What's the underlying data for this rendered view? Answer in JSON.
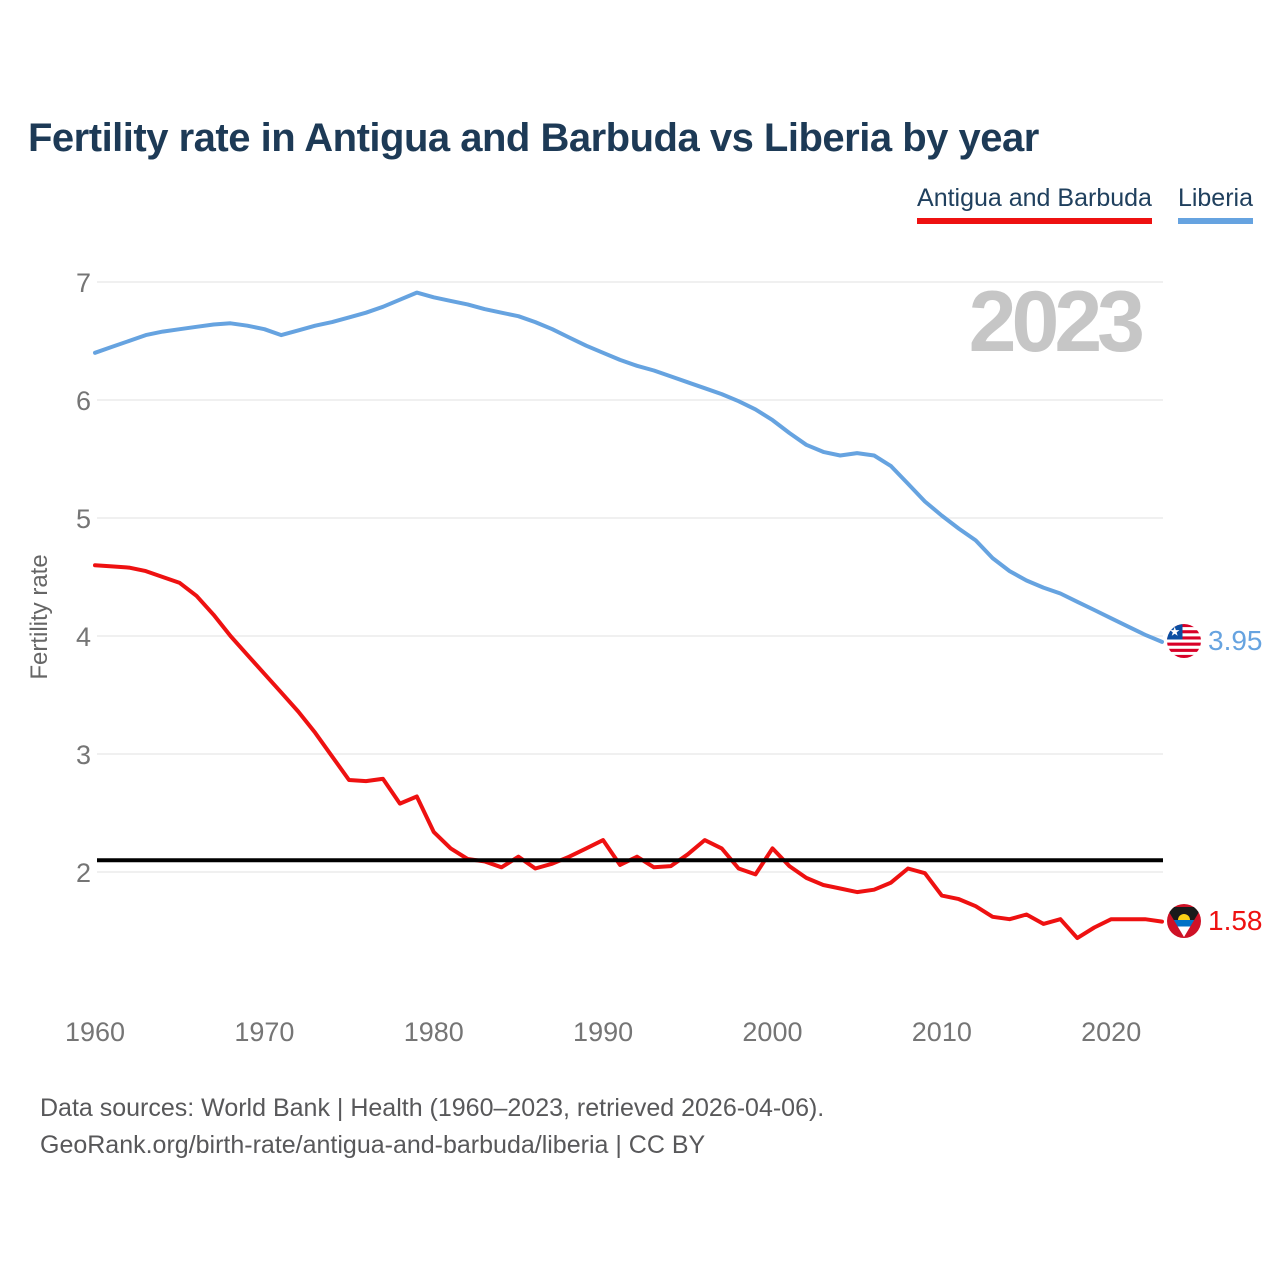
{
  "title": "Fertility rate in Antigua and Barbuda vs Liberia by year",
  "watermark": "2023",
  "ylabel": "Fertility rate",
  "legend": [
    {
      "label": "Antigua and Barbuda",
      "color": "#ee1111"
    },
    {
      "label": "Liberia",
      "color": "#66a3e0"
    }
  ],
  "end_labels": [
    {
      "series": "Liberia",
      "value": "3.95",
      "series_index": 1,
      "flag": "liberia-flag"
    },
    {
      "series": "Antigua and Barbuda",
      "value": "1.58",
      "series_index": 0,
      "flag": "antigua-and-barbuda-flag"
    }
  ],
  "footer": {
    "line1": "Data sources: World Bank | Health (1960–2023, retrieved 2026-04-06).",
    "line2": "GeoRank.org/birth-rate/antigua-and-barbuda/liberia | CC BY"
  },
  "colors": {
    "title": "#1d3a56",
    "antigua_red": "#ee1111",
    "liberia_blue": "#66a3e0",
    "gridline": "#ececec",
    "tick_text": "#757575",
    "axis_label": "#666666",
    "watermark": "#c6c6c6",
    "footer_text": "#58585a",
    "reference_line": "#000000"
  },
  "chart_data": {
    "type": "line",
    "title": "Fertility rate in Antigua and Barbuda vs Liberia by year",
    "xlabel": "",
    "ylabel": "Fertility rate",
    "xlim": [
      1960,
      2023
    ],
    "ylim": [
      1.3,
      7.15
    ],
    "x_ticks": [
      1960,
      1970,
      1980,
      1990,
      2000,
      2010,
      2020
    ],
    "y_ticks": [
      7,
      6,
      5,
      4,
      3,
      2
    ],
    "grid": "horizontal",
    "legend_position": "top-right",
    "annotations": [
      {
        "text": "2023",
        "position": "top-right",
        "role": "year-watermark"
      }
    ],
    "reference_line": {
      "value": 2.1,
      "color": "#000000",
      "meaning": "replacement-level fertility"
    },
    "x": [
      1960,
      1961,
      1962,
      1963,
      1964,
      1965,
      1966,
      1967,
      1968,
      1969,
      1970,
      1971,
      1972,
      1973,
      1974,
      1975,
      1976,
      1977,
      1978,
      1979,
      1980,
      1981,
      1982,
      1983,
      1984,
      1985,
      1986,
      1987,
      1988,
      1989,
      1990,
      1991,
      1992,
      1993,
      1994,
      1995,
      1996,
      1997,
      1998,
      1999,
      2000,
      2001,
      2002,
      2003,
      2004,
      2005,
      2006,
      2007,
      2008,
      2009,
      2010,
      2011,
      2012,
      2013,
      2014,
      2015,
      2016,
      2017,
      2018,
      2019,
      2020,
      2021,
      2022,
      2023
    ],
    "series": [
      {
        "name": "Antigua and Barbuda",
        "color": "#ee1111",
        "end_label": "1.58",
        "values": [
          4.6,
          4.59,
          4.58,
          4.55,
          4.5,
          4.45,
          4.34,
          4.18,
          4.0,
          3.84,
          3.68,
          3.52,
          3.36,
          3.18,
          2.98,
          2.78,
          2.77,
          2.79,
          2.58,
          2.64,
          2.34,
          2.2,
          2.11,
          2.09,
          2.04,
          2.13,
          2.03,
          2.07,
          2.13,
          2.2,
          2.27,
          2.06,
          2.13,
          2.04,
          2.05,
          2.15,
          2.27,
          2.2,
          2.03,
          1.98,
          2.2,
          2.05,
          1.95,
          1.89,
          1.86,
          1.83,
          1.85,
          1.91,
          2.03,
          1.99,
          1.8,
          1.77,
          1.71,
          1.62,
          1.6,
          1.64,
          1.56,
          1.6,
          1.44,
          1.53,
          1.6,
          1.6,
          1.6,
          1.58
        ]
      },
      {
        "name": "Liberia",
        "color": "#66a3e0",
        "end_label": "3.95",
        "values": [
          6.4,
          6.45,
          6.5,
          6.55,
          6.58,
          6.6,
          6.62,
          6.64,
          6.65,
          6.63,
          6.6,
          6.55,
          6.59,
          6.63,
          6.66,
          6.7,
          6.74,
          6.79,
          6.85,
          6.91,
          6.87,
          6.84,
          6.81,
          6.77,
          6.74,
          6.71,
          6.66,
          6.6,
          6.53,
          6.46,
          6.4,
          6.34,
          6.29,
          6.25,
          6.2,
          6.15,
          6.1,
          6.05,
          5.99,
          5.92,
          5.83,
          5.72,
          5.62,
          5.56,
          5.53,
          5.55,
          5.53,
          5.44,
          5.29,
          5.14,
          5.02,
          4.91,
          4.81,
          4.66,
          4.55,
          4.47,
          4.41,
          4.36,
          4.29,
          4.22,
          4.15,
          4.08,
          4.01,
          3.95
        ]
      }
    ]
  }
}
